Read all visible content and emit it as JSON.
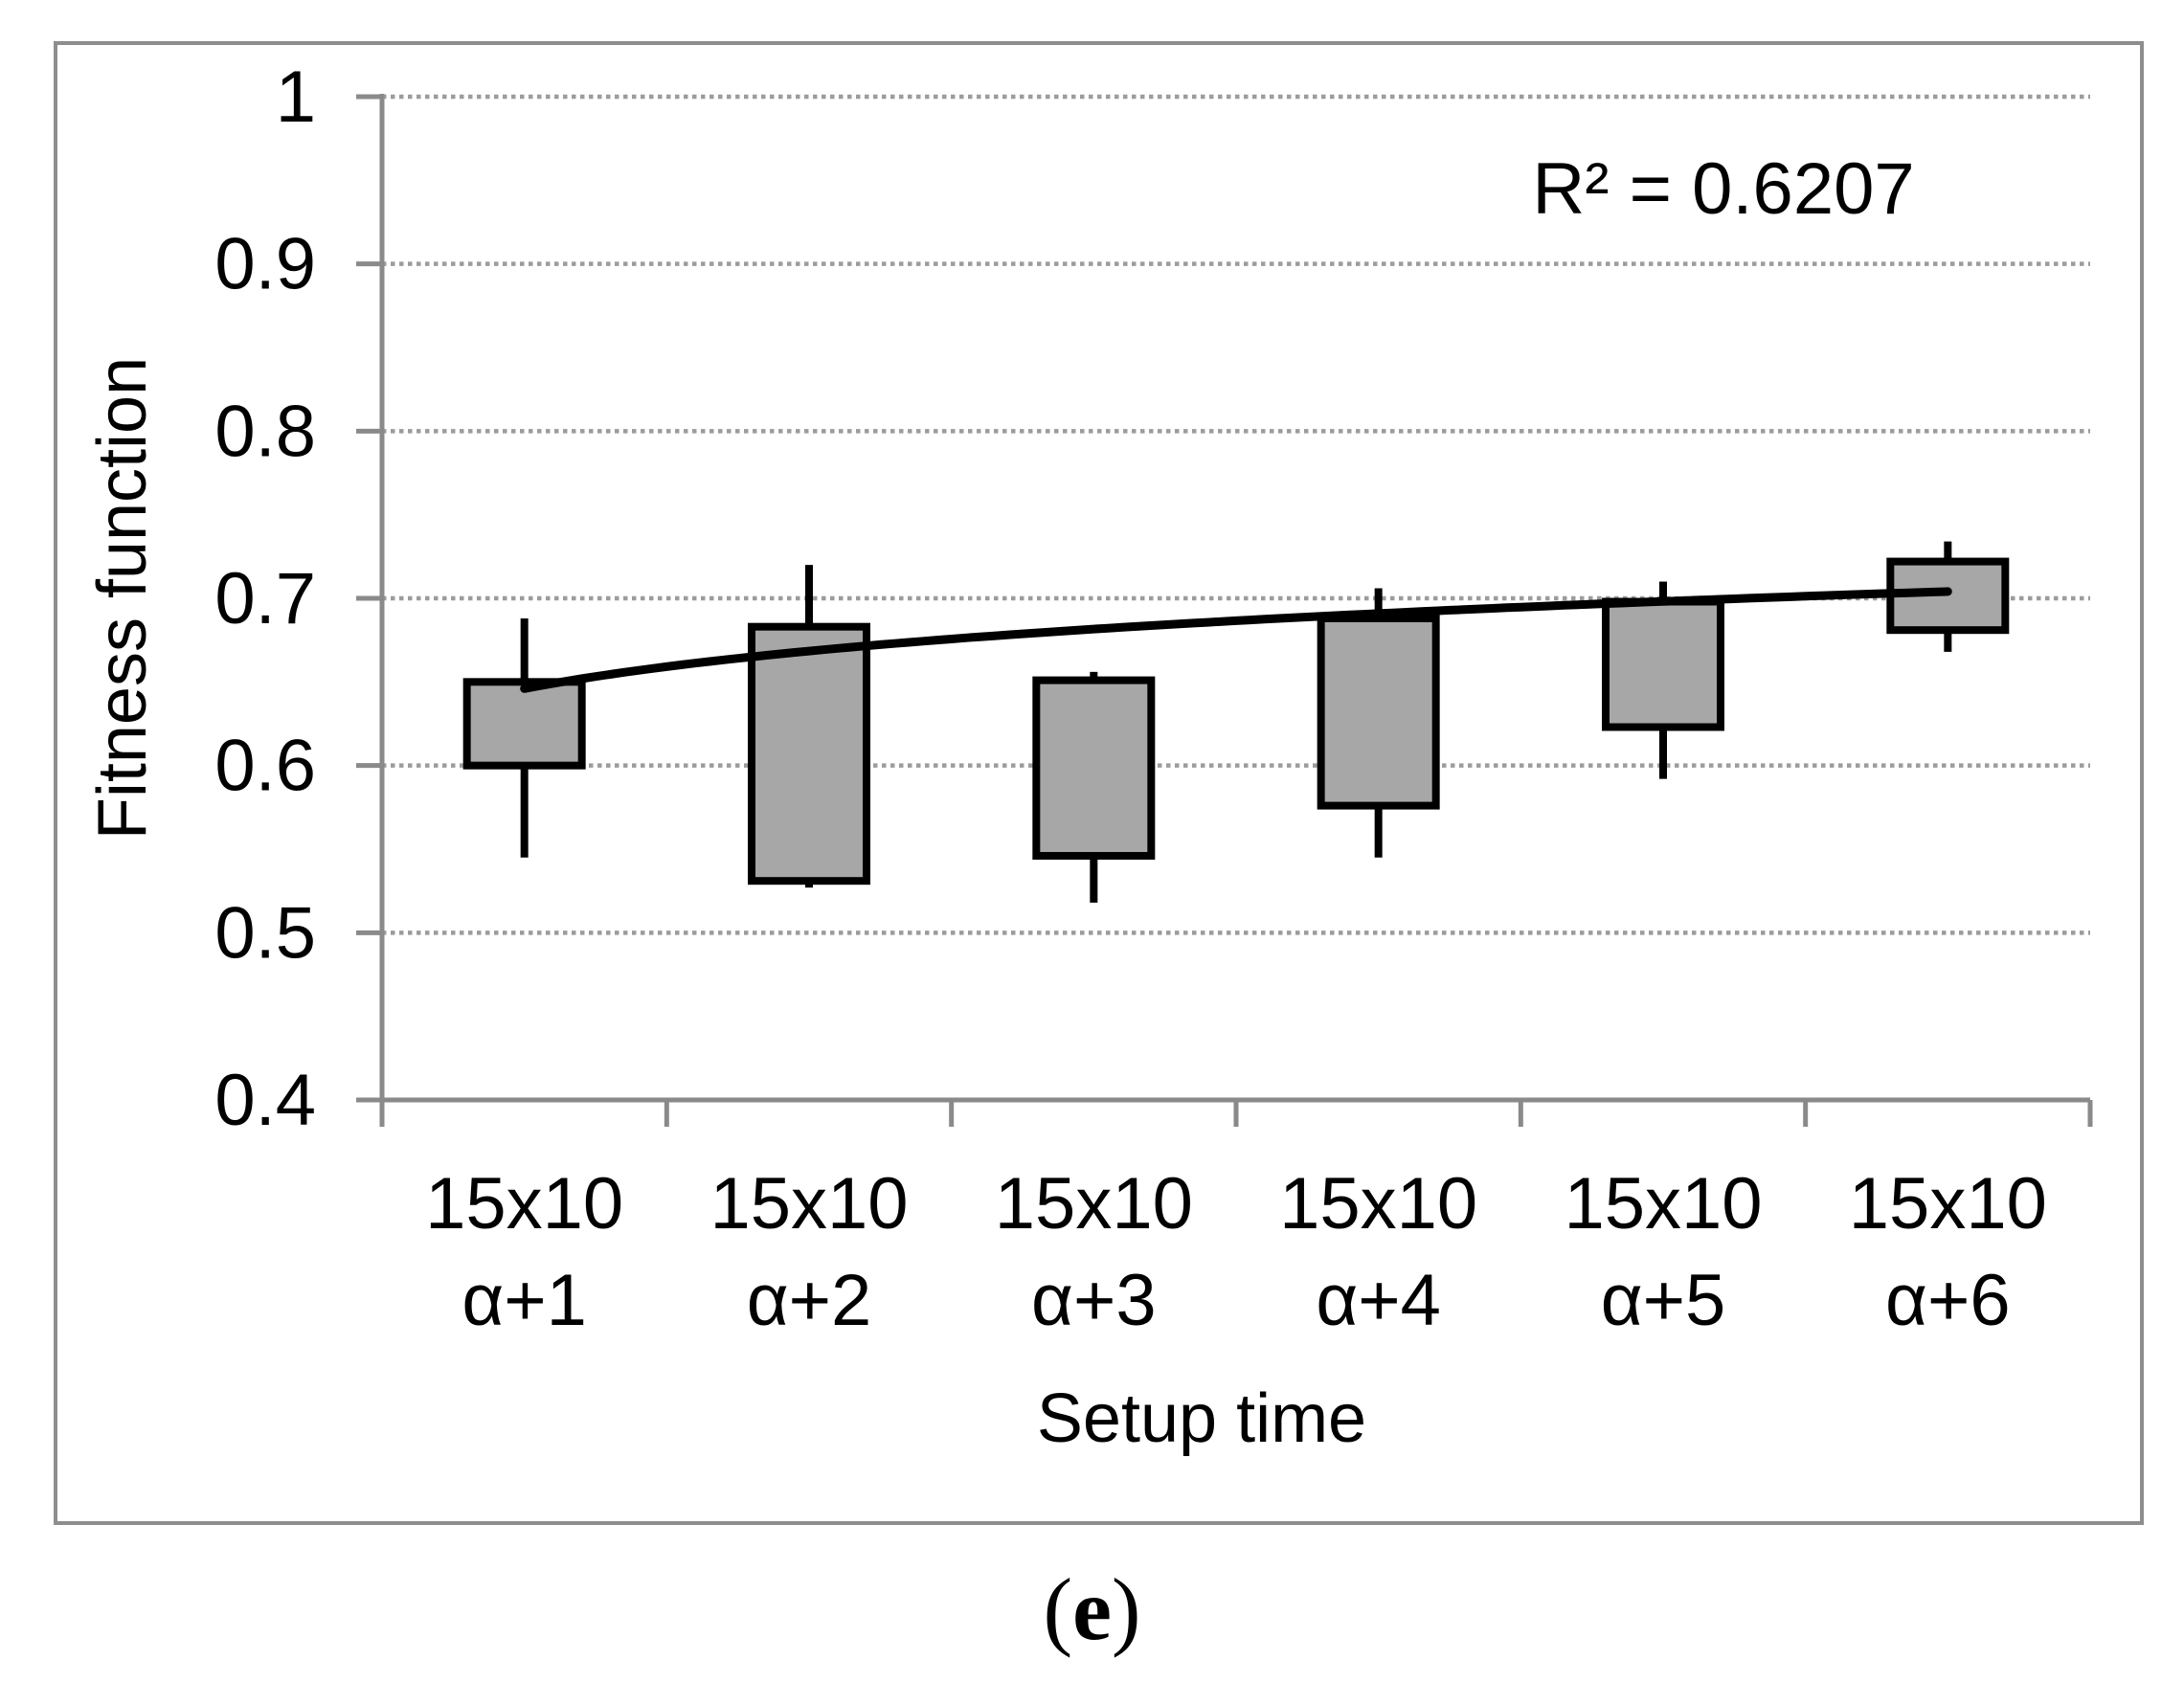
{
  "figure": {
    "caption": {
      "prefix": "(",
      "letter": "e",
      "suffix": ")"
    }
  },
  "chart_data": {
    "type": "boxplot",
    "title": "",
    "xlabel": "Setup time",
    "ylabel": "Fitness function",
    "y_axis": {
      "min": 0.4,
      "max": 1.0,
      "step": 0.1,
      "tick_labels": [
        "1",
        "0.9",
        "0.8",
        "0.7",
        "0.6",
        "0.5",
        "0.4"
      ],
      "tick_values": [
        1.0,
        0.9,
        0.8,
        0.7,
        0.6,
        0.5,
        0.4
      ],
      "gridlines": "dotted"
    },
    "categories": [
      {
        "line1": "15x10",
        "line2": "α+1",
        "whisker_low": 0.545,
        "box_low": 0.6,
        "box_high": 0.65,
        "whisker_high": 0.688
      },
      {
        "line1": "15x10",
        "line2": "α+2",
        "whisker_low": 0.527,
        "box_low": 0.531,
        "box_high": 0.683,
        "whisker_high": 0.72
      },
      {
        "line1": "15x10",
        "line2": "α+3",
        "whisker_low": 0.518,
        "box_low": 0.546,
        "box_high": 0.651,
        "whisker_high": 0.656
      },
      {
        "line1": "15x10",
        "line2": "α+4",
        "whisker_low": 0.545,
        "box_low": 0.576,
        "box_high": 0.688,
        "whisker_high": 0.706
      },
      {
        "line1": "15x10",
        "line2": "α+5",
        "whisker_low": 0.592,
        "box_low": 0.623,
        "box_high": 0.698,
        "whisker_high": 0.71
      },
      {
        "line1": "15x10",
        "line2": "α+6",
        "whisker_low": 0.668,
        "box_low": 0.681,
        "box_high": 0.722,
        "whisker_high": 0.734
      }
    ],
    "trendline": {
      "type": "logarithmic",
      "a": 0.0324,
      "b": 0.646,
      "values": [
        0.646,
        0.668,
        0.682,
        0.691,
        0.698,
        0.704
      ],
      "r2_label": "R² = 0.6207"
    },
    "colors": {
      "box_fill": "#a7a7a7",
      "box_stroke": "#000000",
      "axis": "#8a8a8a",
      "gridline": "#9c9c9c",
      "trendline": "#000000",
      "border": "#8e8e8e",
      "text": "#000000"
    }
  }
}
